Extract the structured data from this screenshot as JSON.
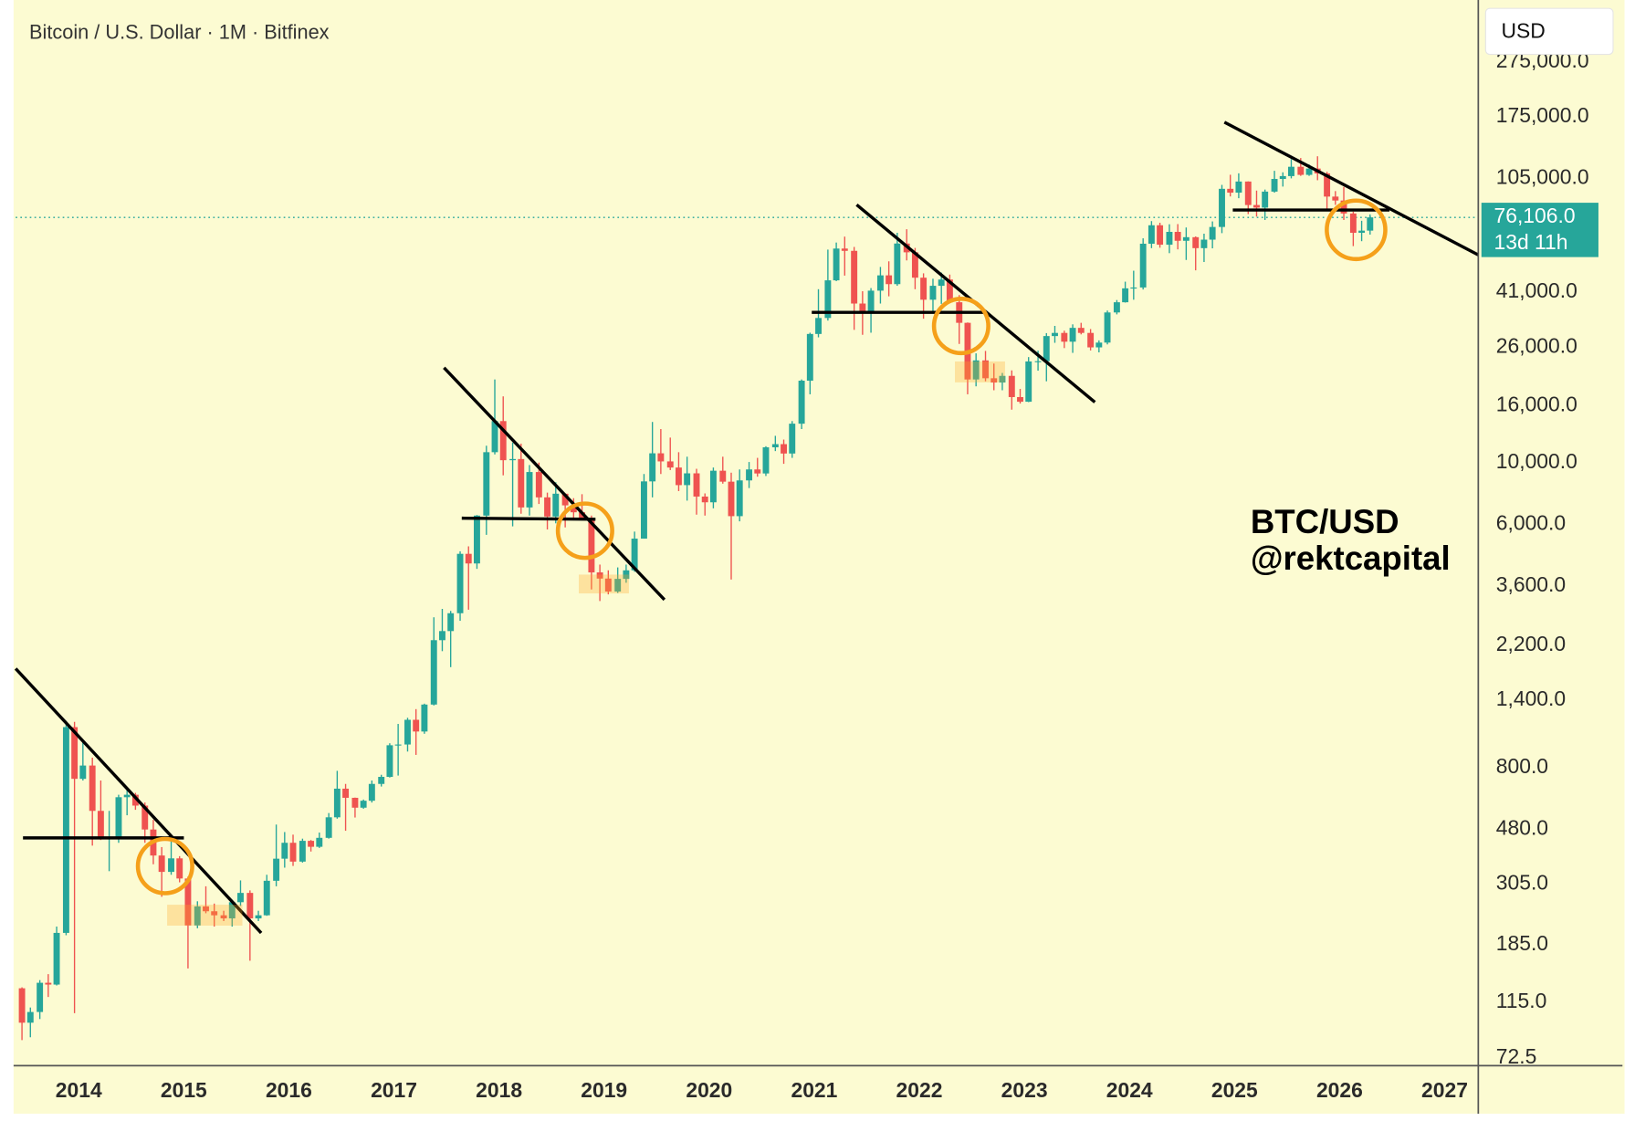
{
  "chart_data": {
    "type": "candlestick",
    "title": "Bitcoin / U.S. Dollar · 1M · Bitfinex",
    "currency": "USD",
    "watermark": [
      "BTC/USD",
      "@rektcapital"
    ],
    "log_scale": true,
    "up_color": "#26a69a",
    "down_color": "#ef5350",
    "xlim": [
      2013.4,
      2027.32
    ],
    "xticks": [
      2014,
      2015,
      2016,
      2017,
      2018,
      2019,
      2020,
      2021,
      2022,
      2023,
      2024,
      2025,
      2026,
      2027
    ],
    "ylim": [
      68,
      460000
    ],
    "yticks": [
      72.5,
      {
        "value": 115,
        "label": "115.0"
      },
      {
        "value": 185,
        "label": "185.0"
      },
      {
        "value": 305,
        "label": "305.0"
      },
      {
        "value": 480,
        "label": "480.0"
      },
      {
        "value": 800,
        "label": "800.0"
      },
      {
        "value": 1400,
        "label": "1,400.0"
      },
      {
        "value": 2200,
        "label": "2,200.0"
      },
      {
        "value": 3600,
        "label": "3,600.0"
      },
      {
        "value": 6000,
        "label": "6,000.0"
      },
      {
        "value": 10000,
        "label": "10,000.0"
      },
      {
        "value": 16000,
        "label": "16,000.0"
      },
      {
        "value": 26000,
        "label": "26,000.0"
      },
      {
        "value": 41000,
        "label": "41,000.0"
      },
      {
        "value": 105000,
        "label": "105,000.0"
      },
      {
        "value": 175000,
        "label": "175,000.0"
      },
      {
        "value": 275000,
        "label": "275,000.0"
      }
    ],
    "last_price": {
      "value": 76106,
      "label": "76,106.0"
    },
    "countdown": "13d 11h",
    "x": [
      2013.46,
      2013.54,
      2013.63,
      2013.71,
      2013.79,
      2013.88,
      2013.96,
      2014.04,
      2014.13,
      2014.21,
      2014.29,
      2014.38,
      2014.46,
      2014.54,
      2014.63,
      2014.71,
      2014.79,
      2014.88,
      2014.96,
      2015.04,
      2015.13,
      2015.21,
      2015.29,
      2015.38,
      2015.46,
      2015.54,
      2015.63,
      2015.71,
      2015.79,
      2015.88,
      2015.96,
      2016.04,
      2016.13,
      2016.21,
      2016.29,
      2016.38,
      2016.46,
      2016.54,
      2016.63,
      2016.71,
      2016.79,
      2016.88,
      2016.96,
      2017.04,
      2017.13,
      2017.21,
      2017.29,
      2017.38,
      2017.46,
      2017.54,
      2017.63,
      2017.71,
      2017.79,
      2017.88,
      2017.96,
      2018.04,
      2018.13,
      2018.21,
      2018.29,
      2018.38,
      2018.46,
      2018.54,
      2018.63,
      2018.71,
      2018.79,
      2018.88,
      2018.96,
      2019.04,
      2019.13,
      2019.21,
      2019.29,
      2019.38,
      2019.46,
      2019.54,
      2019.63,
      2019.71,
      2019.79,
      2019.88,
      2019.96,
      2020.04,
      2020.13,
      2020.21,
      2020.29,
      2020.38,
      2020.46,
      2020.54,
      2020.63,
      2020.71,
      2020.79,
      2020.88,
      2020.96,
      2021.04,
      2021.13,
      2021.21,
      2021.29,
      2021.38,
      2021.46,
      2021.54,
      2021.63,
      2021.71,
      2021.79,
      2021.88,
      2021.96,
      2022.04,
      2022.13,
      2022.21,
      2022.29,
      2022.38,
      2022.46,
      2022.54,
      2022.63,
      2022.71,
      2022.79,
      2022.88,
      2022.96,
      2023.04,
      2023.13,
      2023.21,
      2023.29,
      2023.38,
      2023.46,
      2023.54,
      2023.63,
      2023.71,
      2023.79,
      2023.88,
      2023.96,
      2024.04,
      2024.13,
      2024.21,
      2024.29,
      2024.38,
      2024.46,
      2024.54,
      2024.63,
      2024.71,
      2024.79,
      2024.88,
      2024.96,
      2025.04,
      2025.13,
      2025.21,
      2025.29,
      2025.38,
      2025.46,
      2025.54,
      2025.63,
      2025.71,
      2025.79,
      2025.88,
      2025.96,
      2026.04,
      2026.13,
      2026.21,
      2026.29
    ],
    "open": [
      129,
      97,
      106,
      135,
      133,
      204,
      1120,
      730,
      815,
      560,
      445,
      448,
      627,
      640,
      585,
      480,
      387,
      338,
      378,
      320,
      217,
      254,
      244,
      236,
      230,
      263,
      284,
      230,
      236,
      314,
      377,
      430,
      368,
      437,
      416,
      448,
      531,
      673,
      624,
      575,
      609,
      700,
      742,
      964,
      970,
      1190,
      1080,
      1350,
      2300,
      2480,
      2875,
      4700,
      4340,
      6450,
      10900,
      14100,
      10200,
      10300,
      6900,
      9250,
      7500,
      6400,
      7730,
      7020,
      6630,
      6300,
      4030,
      3830,
      3440,
      3820,
      4100,
      5330,
      8560,
      10800,
      10100,
      9600,
      8300,
      9150,
      7550,
      7200,
      9350,
      8540,
      6420,
      8630,
      9450,
      9140,
      11350,
      11650,
      10780,
      13800,
      19700,
      29000,
      33100,
      45200,
      58800,
      57700,
      37300,
      35000,
      41500,
      47100,
      43800,
      61300,
      57000,
      46200,
      38500,
      43200,
      45500,
      37700,
      31800,
      19900,
      23300,
      20100,
      19400,
      20500,
      17200,
      16550,
      23100,
      23150,
      28500,
      29250,
      27200,
      30500,
      29250,
      25950,
      27000,
      34650,
      37700,
      42300,
      42600,
      61200,
      71300,
      60700,
      67500,
      62700,
      64600,
      59000,
      63300,
      70300,
      96400,
      93400,
      102400,
      84300,
      82500,
      94200,
      104600,
      107100,
      115700,
      108200,
      114000,
      109500,
      90400,
      87500,
      78600,
      67000,
      68200
    ],
    "high": [
      130,
      110,
      138,
      145,
      215,
      1180,
      1170,
      1000,
      870,
      720,
      560,
      640,
      680,
      650,
      600,
      520,
      415,
      460,
      385,
      325,
      265,
      300,
      260,
      245,
      268,
      315,
      290,
      245,
      330,
      500,
      470,
      460,
      445,
      440,
      468,
      550,
      780,
      700,
      625,
      615,
      720,
      755,
      980,
      1150,
      1210,
      1300,
      1360,
      2780,
      2980,
      2930,
      4800,
      5000,
      6480,
      11500,
      19900,
      17300,
      11800,
      11700,
      9800,
      10000,
      7800,
      8500,
      7750,
      7450,
      7700,
      6450,
      4300,
      4100,
      4200,
      4300,
      5650,
      9100,
      14000,
      13200,
      12300,
      10900,
      10500,
      9500,
      7750,
      9600,
      10500,
      9200,
      9450,
      10050,
      10400,
      11450,
      12480,
      12100,
      14100,
      19900,
      29300,
      42000,
      58300,
      61800,
      64900,
      59600,
      41300,
      42400,
      50500,
      52900,
      67000,
      69000,
      59100,
      47900,
      45800,
      48200,
      47400,
      40000,
      31900,
      24700,
      25200,
      22700,
      21000,
      21450,
      18400,
      23950,
      25250,
      29200,
      31000,
      29800,
      31400,
      31800,
      30200,
      27500,
      35200,
      38400,
      44700,
      48950,
      64000,
      73800,
      72800,
      71900,
      72000,
      70000,
      65000,
      66500,
      73600,
      99600,
      108300,
      109600,
      102500,
      95000,
      95800,
      111900,
      110500,
      123200,
      124400,
      117900,
      126200,
      111000,
      94600,
      97900,
      79800,
      74000,
      78000
    ],
    "low": [
      84,
      86,
      100,
      120,
      132,
      200,
      105,
      720,
      420,
      440,
      340,
      430,
      540,
      565,
      430,
      360,
      275,
      330,
      310,
      152,
      212,
      240,
      215,
      225,
      215,
      255,
      162,
      225,
      235,
      300,
      350,
      355,
      365,
      400,
      412,
      445,
      525,
      475,
      530,
      570,
      600,
      685,
      738,
      750,
      915,
      890,
      1060,
      1340,
      2100,
      1840,
      2700,
      2960,
      4150,
      5500,
      10700,
      9000,
      5900,
      6550,
      6450,
      7100,
      5750,
      6050,
      5850,
      6200,
      6200,
      3500,
      3180,
      3360,
      3400,
      3700,
      4050,
      5330,
      7500,
      9100,
      9400,
      7900,
      7300,
      6500,
      6450,
      6850,
      8400,
      3800,
      6150,
      8100,
      8900,
      8950,
      11000,
      9900,
      10400,
      13200,
      17600,
      28200,
      32400,
      44900,
      47000,
      30000,
      28800,
      29300,
      37300,
      39600,
      43200,
      53300,
      42000,
      32900,
      34300,
      37200,
      37600,
      26700,
      17600,
      18800,
      19600,
      18200,
      18200,
      15500,
      16300,
      16500,
      21400,
      19600,
      26950,
      25800,
      24800,
      28900,
      25300,
      24900,
      26600,
      34100,
      37600,
      38500,
      41900,
      59000,
      59200,
      56600,
      58400,
      53500,
      49100,
      52600,
      58900,
      66800,
      90500,
      89200,
      78200,
      76600,
      74500,
      93400,
      98200,
      105100,
      107300,
      107300,
      103500,
      80600,
      84400,
      74500,
      60000,
      62500,
      66000
    ],
    "close": [
      97,
      106,
      135,
      133,
      204,
      1120,
      730,
      815,
      560,
      445,
      448,
      627,
      640,
      585,
      480,
      387,
      338,
      378,
      320,
      217,
      254,
      244,
      236,
      230,
      263,
      284,
      230,
      236,
      314,
      377,
      430,
      368,
      437,
      416,
      448,
      531,
      673,
      624,
      575,
      609,
      700,
      742,
      964,
      970,
      1190,
      1080,
      1350,
      2300,
      2480,
      2875,
      4700,
      4340,
      6450,
      10900,
      14100,
      10200,
      10300,
      6900,
      9250,
      7500,
      6400,
      7730,
      7020,
      6630,
      6300,
      4030,
      3830,
      3440,
      3820,
      4100,
      5330,
      8560,
      10800,
      10100,
      9600,
      8300,
      9150,
      7550,
      7200,
      9350,
      8540,
      6420,
      8630,
      9450,
      9140,
      11350,
      11650,
      10780,
      13800,
      19700,
      29000,
      33100,
      45200,
      58800,
      57700,
      37300,
      35000,
      41500,
      47100,
      43800,
      61300,
      57000,
      46200,
      38500,
      43200,
      45500,
      37700,
      31800,
      19900,
      23300,
      20100,
      19400,
      20500,
      17200,
      16550,
      23100,
      23150,
      28500,
      29250,
      27200,
      30500,
      29250,
      25950,
      27000,
      34650,
      37700,
      42300,
      42600,
      61200,
      71300,
      60700,
      67500,
      62700,
      64600,
      59000,
      63300,
      70300,
      96400,
      93400,
      102400,
      84300,
      82500,
      94200,
      104600,
      107100,
      115700,
      108200,
      114000,
      109500,
      90400,
      87500,
      78600,
      67000,
      68200,
      76106
    ]
  }
}
